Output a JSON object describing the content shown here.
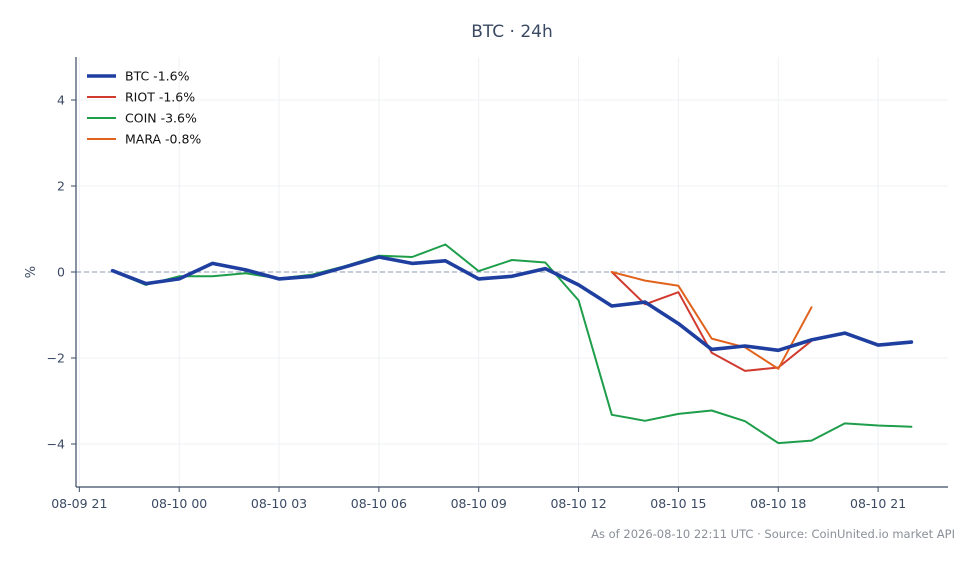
{
  "chart_data": {
    "type": "line",
    "title": "BTC · 24h",
    "xlabel": "",
    "ylabel": "%",
    "x_ticks": [
      "08-09 21",
      "08-10 00",
      "08-10 03",
      "08-10 06",
      "08-10 09",
      "08-10 12",
      "08-10 15",
      "08-10 18",
      "08-10 21"
    ],
    "x_range_hours": [
      -0.1,
      26.1
    ],
    "ylim": [
      -5,
      5
    ],
    "y_ticks": [
      -4,
      -2,
      0,
      2,
      4
    ],
    "y_tick_labels": [
      "−4",
      "−2",
      "0",
      "2",
      "4"
    ],
    "grid": true,
    "reference_line": 0,
    "legend_position": "top-left",
    "series": [
      {
        "name": "BTC -1.6%",
        "color": "#1f3fa0",
        "x": [
          1,
          2,
          3,
          4,
          5,
          6,
          7,
          8,
          9,
          10,
          11,
          12,
          13,
          14,
          15,
          16,
          17,
          18,
          19,
          20,
          21,
          22,
          23,
          24,
          25
        ],
        "values": [
          0.03,
          -0.27,
          -0.16,
          0.2,
          0.05,
          -0.16,
          -0.1,
          0.12,
          0.35,
          0.2,
          0.26,
          -0.16,
          -0.1,
          0.08,
          -0.3,
          -0.79,
          -0.7,
          -1.2,
          -1.8,
          -1.72,
          -1.82,
          -1.58,
          -1.42,
          -1.7,
          -1.63
        ]
      },
      {
        "name": "RIOT -1.6%",
        "color": "#d03a2f",
        "x": [
          16,
          17,
          18,
          19,
          20,
          21,
          22
        ],
        "values": [
          0.0,
          -0.75,
          -0.47,
          -1.88,
          -2.3,
          -2.22,
          -1.6
        ]
      },
      {
        "name": "COIN -3.6%",
        "color": "#1e9e4a",
        "x": [
          1,
          2,
          3,
          4,
          5,
          6,
          7,
          8,
          9,
          10,
          11,
          12,
          13,
          14,
          15,
          16,
          17,
          18,
          19,
          20,
          21,
          22,
          23,
          24,
          25
        ],
        "values": [
          0.02,
          -0.3,
          -0.1,
          -0.1,
          -0.03,
          -0.15,
          -0.06,
          0.14,
          0.38,
          0.35,
          0.64,
          0.02,
          0.28,
          0.22,
          -0.66,
          -3.32,
          -3.46,
          -3.3,
          -3.22,
          -3.47,
          -3.98,
          -3.92,
          -3.52,
          -3.57,
          -3.6
        ]
      },
      {
        "name": "MARA -0.8%",
        "color": "#e0621c",
        "x": [
          16,
          17,
          18,
          19,
          20,
          21,
          22
        ],
        "values": [
          0.0,
          -0.2,
          -0.32,
          -1.55,
          -1.75,
          -2.25,
          -0.82
        ]
      }
    ],
    "footnote": "As of 2026-08-10 22:11 UTC · Source: CoinUnited.io market API"
  }
}
